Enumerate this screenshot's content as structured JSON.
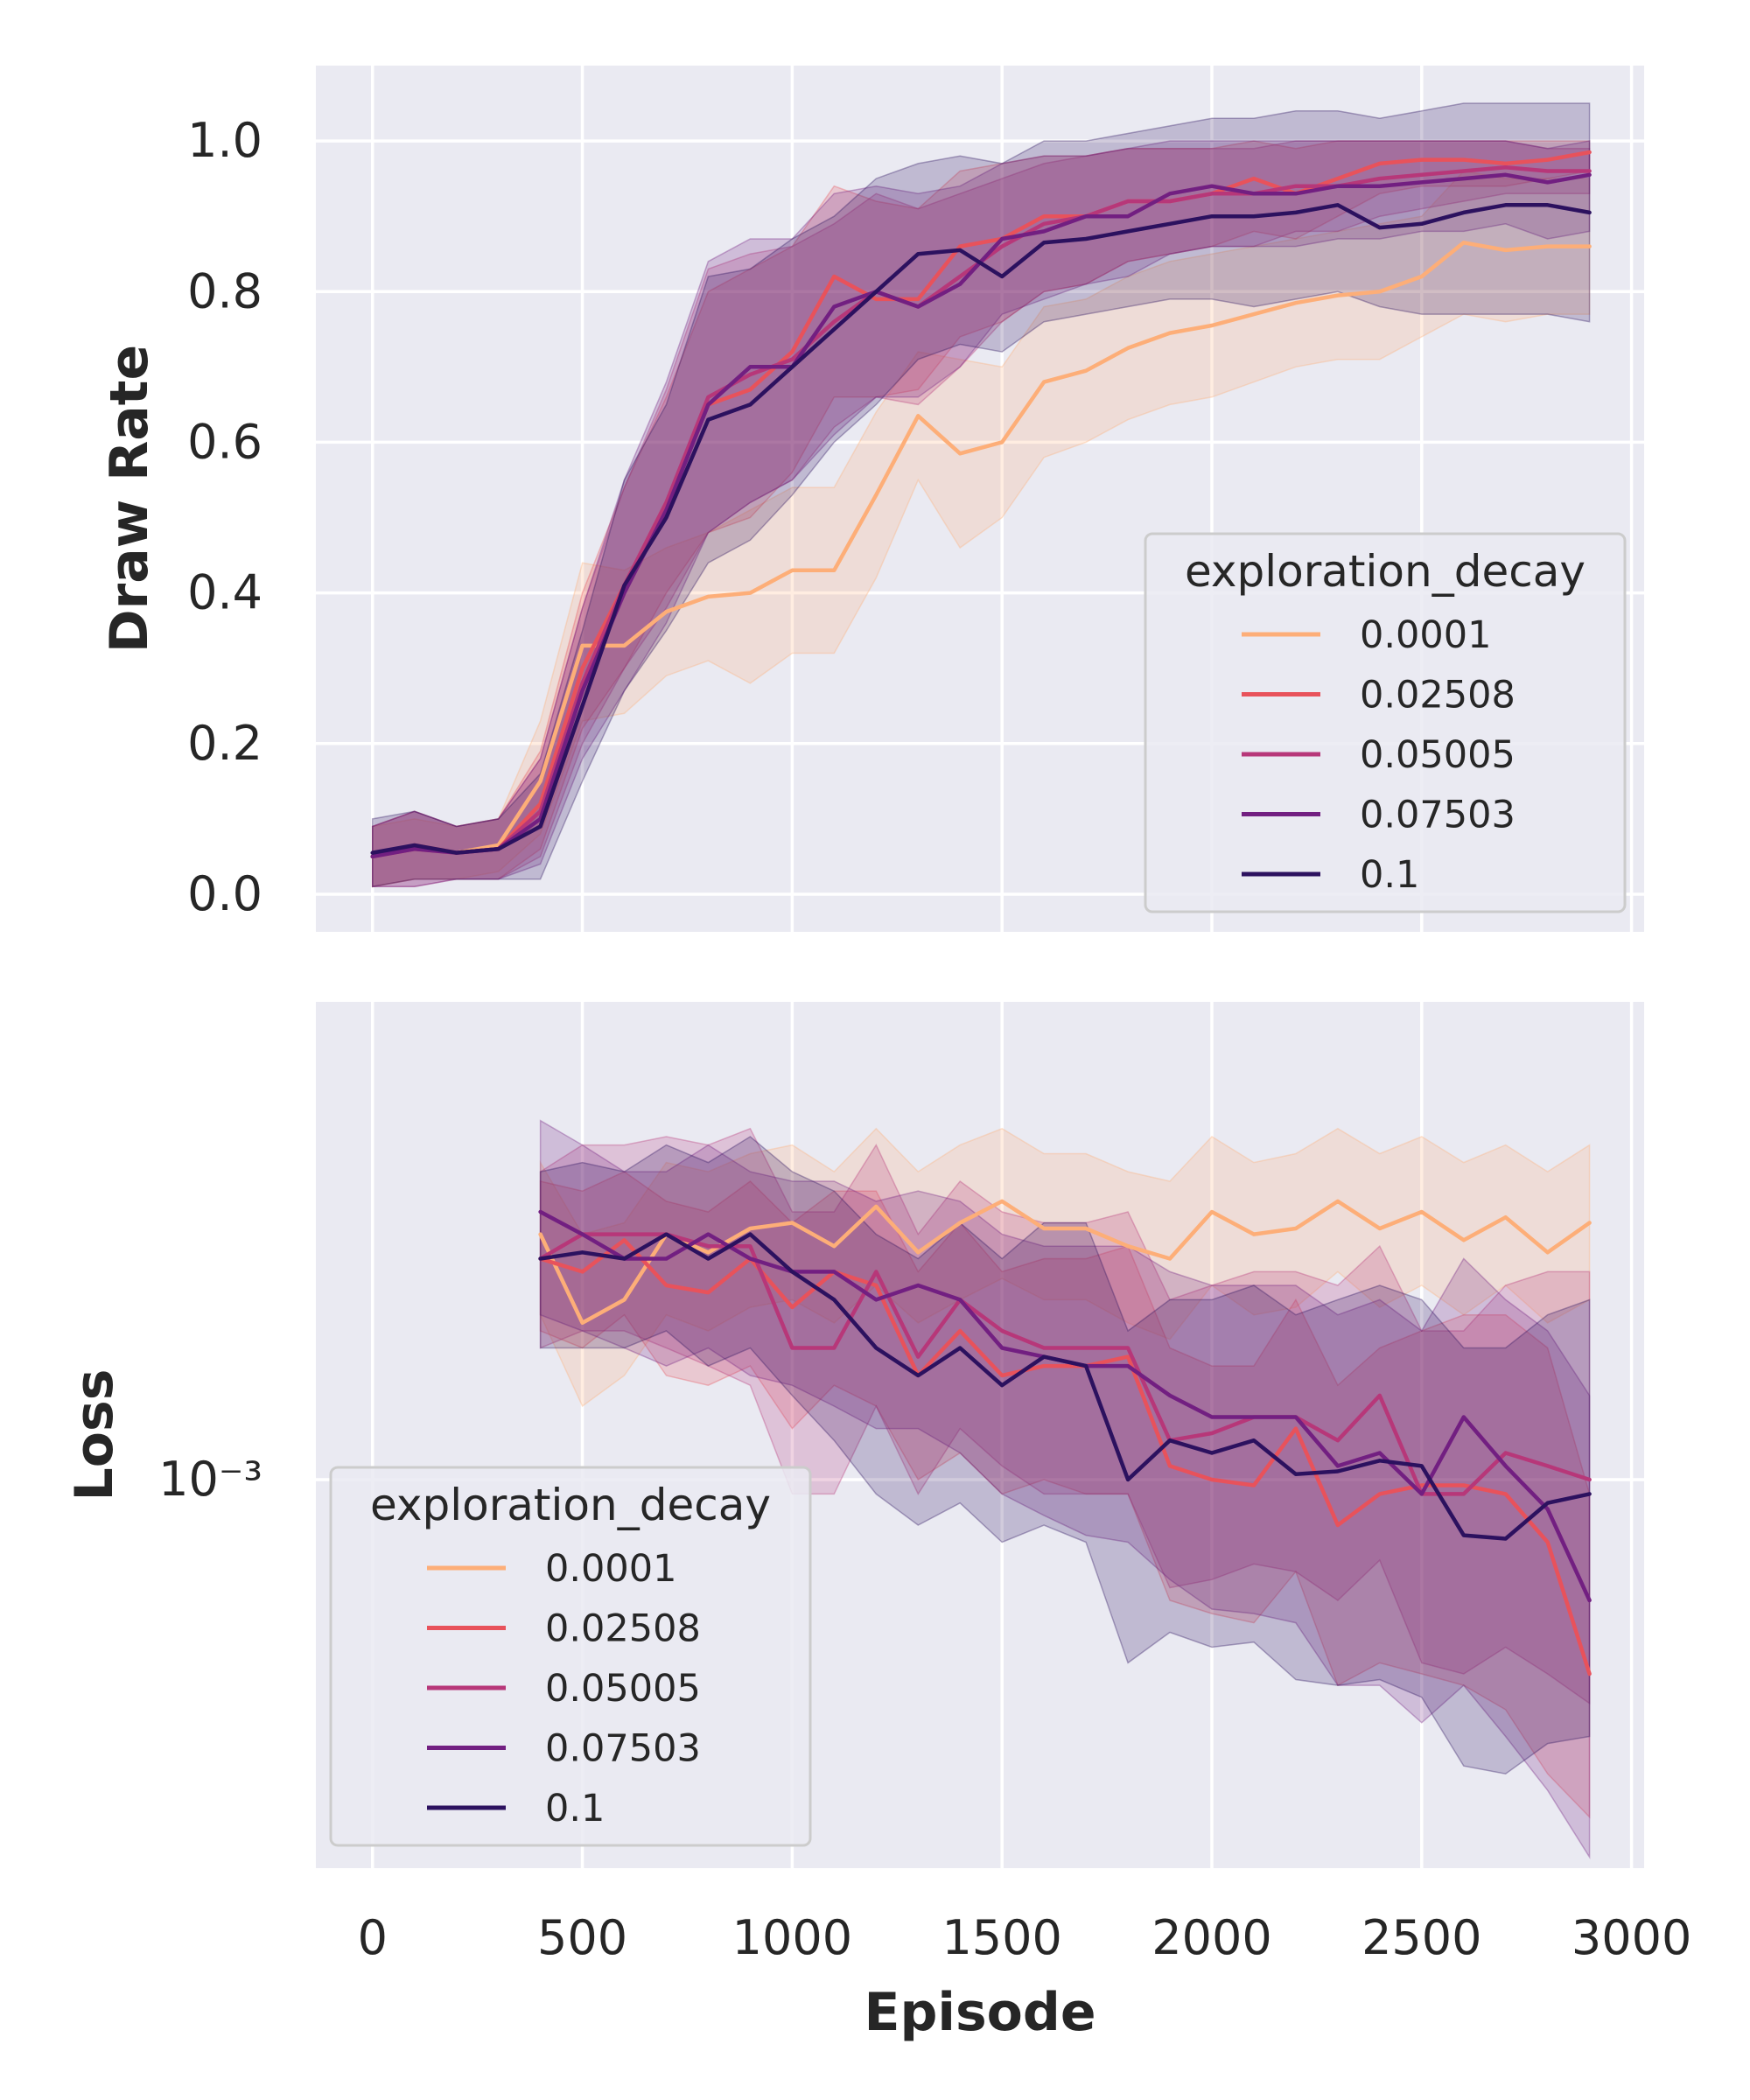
{
  "figure": {
    "shared_xlabel": "Episode",
    "shared_xticks": [
      "0",
      "500",
      "1000",
      "1500",
      "2000",
      "2500",
      "3000"
    ]
  },
  "chart_data": [
    {
      "type": "line",
      "ylabel": "Draw Rate",
      "xlim": [
        -135,
        3030
      ],
      "ylim": [
        -0.05,
        1.1
      ],
      "yticks": [
        "0.0",
        "0.2",
        "0.4",
        "0.6",
        "0.8",
        "1.0"
      ],
      "grid": true,
      "legend": {
        "title": "exploration_decay",
        "position": "center-right"
      },
      "x": [
        0,
        100,
        200,
        300,
        400,
        500,
        600,
        700,
        800,
        900,
        1000,
        1100,
        1200,
        1300,
        1400,
        1500,
        1600,
        1700,
        1800,
        1900,
        2000,
        2100,
        2200,
        2300,
        2400,
        2500,
        2600,
        2700,
        2800,
        2900
      ],
      "series": [
        {
          "name": "0.0001",
          "color": "#fdae78",
          "values": [
            0.05,
            0.06,
            0.055,
            0.065,
            0.15,
            0.33,
            0.33,
            0.375,
            0.395,
            0.4,
            0.43,
            0.43,
            0.53,
            0.635,
            0.585,
            0.6,
            0.68,
            0.695,
            0.725,
            0.745,
            0.755,
            0.77,
            0.785,
            0.795,
            0.8,
            0.82,
            0.865,
            0.855,
            0.86,
            0.86
          ],
          "lower": [
            0.01,
            0.02,
            0.02,
            0.03,
            0.08,
            0.23,
            0.24,
            0.29,
            0.31,
            0.28,
            0.32,
            0.32,
            0.42,
            0.55,
            0.46,
            0.5,
            0.58,
            0.6,
            0.63,
            0.65,
            0.66,
            0.68,
            0.7,
            0.71,
            0.71,
            0.74,
            0.77,
            0.76,
            0.77,
            0.77
          ],
          "upper": [
            0.09,
            0.1,
            0.09,
            0.1,
            0.23,
            0.44,
            0.43,
            0.46,
            0.48,
            0.51,
            0.54,
            0.54,
            0.64,
            0.72,
            0.71,
            0.7,
            0.78,
            0.79,
            0.82,
            0.84,
            0.85,
            0.86,
            0.87,
            0.88,
            0.89,
            0.9,
            0.96,
            0.95,
            0.95,
            0.95
          ]
        },
        {
          "name": "0.02508",
          "color": "#e8525b",
          "values": [
            0.05,
            0.065,
            0.055,
            0.06,
            0.12,
            0.3,
            0.41,
            0.52,
            0.65,
            0.67,
            0.72,
            0.82,
            0.79,
            0.79,
            0.86,
            0.87,
            0.9,
            0.9,
            0.92,
            0.92,
            0.93,
            0.95,
            0.93,
            0.95,
            0.97,
            0.975,
            0.975,
            0.97,
            0.975,
            0.985
          ],
          "lower": [
            0.01,
            0.02,
            0.02,
            0.02,
            0.06,
            0.22,
            0.3,
            0.4,
            0.48,
            0.5,
            0.56,
            0.66,
            0.66,
            0.67,
            0.74,
            0.76,
            0.8,
            0.81,
            0.84,
            0.85,
            0.86,
            0.88,
            0.87,
            0.9,
            0.93,
            0.94,
            0.94,
            0.94,
            0.95,
            0.96
          ],
          "upper": [
            0.09,
            0.11,
            0.09,
            0.1,
            0.19,
            0.4,
            0.54,
            0.66,
            0.8,
            0.83,
            0.86,
            0.94,
            0.92,
            0.91,
            0.96,
            0.97,
            0.98,
            0.98,
            0.99,
            0.99,
            0.99,
            1.0,
            0.99,
            1.0,
            1.0,
            1.0,
            1.0,
            1.0,
            1.0,
            1.0
          ]
        },
        {
          "name": "0.05005",
          "color": "#b73779",
          "values": [
            0.05,
            0.06,
            0.055,
            0.06,
            0.11,
            0.28,
            0.41,
            0.52,
            0.66,
            0.69,
            0.71,
            0.76,
            0.8,
            0.78,
            0.82,
            0.86,
            0.89,
            0.9,
            0.92,
            0.92,
            0.93,
            0.93,
            0.94,
            0.94,
            0.95,
            0.955,
            0.96,
            0.965,
            0.96,
            0.96
          ],
          "lower": [
            0.01,
            0.01,
            0.02,
            0.02,
            0.05,
            0.2,
            0.3,
            0.38,
            0.48,
            0.52,
            0.55,
            0.62,
            0.66,
            0.65,
            0.7,
            0.76,
            0.8,
            0.81,
            0.84,
            0.85,
            0.86,
            0.86,
            0.88,
            0.88,
            0.9,
            0.91,
            0.92,
            0.93,
            0.93,
            0.93
          ],
          "upper": [
            0.09,
            0.11,
            0.09,
            0.1,
            0.18,
            0.38,
            0.54,
            0.67,
            0.83,
            0.85,
            0.86,
            0.89,
            0.93,
            0.91,
            0.93,
            0.95,
            0.97,
            0.98,
            0.99,
            0.99,
            0.99,
            0.99,
            1.0,
            1.0,
            1.0,
            1.0,
            1.0,
            1.0,
            0.99,
            0.99
          ]
        },
        {
          "name": "0.07503",
          "color": "#721f81",
          "values": [
            0.05,
            0.06,
            0.055,
            0.06,
            0.1,
            0.27,
            0.4,
            0.51,
            0.65,
            0.7,
            0.7,
            0.78,
            0.8,
            0.78,
            0.81,
            0.87,
            0.88,
            0.9,
            0.9,
            0.93,
            0.94,
            0.93,
            0.93,
            0.94,
            0.94,
            0.945,
            0.95,
            0.955,
            0.945,
            0.955
          ],
          "lower": [
            0.01,
            0.01,
            0.02,
            0.02,
            0.04,
            0.18,
            0.27,
            0.36,
            0.48,
            0.52,
            0.55,
            0.61,
            0.66,
            0.66,
            0.7,
            0.77,
            0.79,
            0.81,
            0.82,
            0.85,
            0.86,
            0.86,
            0.86,
            0.87,
            0.87,
            0.88,
            0.88,
            0.89,
            0.87,
            0.88
          ],
          "upper": [
            0.09,
            0.11,
            0.09,
            0.1,
            0.18,
            0.38,
            0.55,
            0.68,
            0.84,
            0.87,
            0.87,
            0.93,
            0.94,
            0.93,
            0.94,
            0.97,
            0.98,
            0.98,
            0.99,
            1.0,
            1.0,
            1.0,
            1.0,
            1.0,
            1.0,
            1.0,
            1.0,
            1.0,
            0.99,
            1.0
          ]
        },
        {
          "name": "0.1",
          "color": "#2c115f",
          "values": [
            0.055,
            0.065,
            0.055,
            0.06,
            0.09,
            0.25,
            0.41,
            0.5,
            0.63,
            0.65,
            0.7,
            0.75,
            0.8,
            0.85,
            0.855,
            0.82,
            0.865,
            0.87,
            0.88,
            0.89,
            0.9,
            0.9,
            0.905,
            0.915,
            0.885,
            0.89,
            0.905,
            0.915,
            0.915,
            0.905
          ],
          "lower": [
            0.01,
            0.02,
            0.02,
            0.02,
            0.02,
            0.15,
            0.27,
            0.35,
            0.44,
            0.47,
            0.53,
            0.6,
            0.65,
            0.71,
            0.73,
            0.72,
            0.76,
            0.77,
            0.78,
            0.79,
            0.79,
            0.78,
            0.79,
            0.8,
            0.78,
            0.77,
            0.77,
            0.77,
            0.77,
            0.76
          ],
          "upper": [
            0.1,
            0.11,
            0.09,
            0.1,
            0.16,
            0.35,
            0.55,
            0.65,
            0.82,
            0.83,
            0.87,
            0.9,
            0.95,
            0.97,
            0.98,
            0.97,
            1.0,
            1.0,
            1.01,
            1.02,
            1.03,
            1.03,
            1.04,
            1.04,
            1.03,
            1.04,
            1.05,
            1.05,
            1.05,
            1.05
          ]
        }
      ]
    },
    {
      "type": "line",
      "ylabel": "Loss",
      "yscale": "log",
      "xlim": [
        -135,
        3030
      ],
      "ylim": [
        0.00025,
        0.0055
      ],
      "yticks": [
        "10⁻³"
      ],
      "ytick_values": [
        0.001
      ],
      "grid": true,
      "legend": {
        "title": "exploration_decay",
        "position": "lower-left"
      },
      "x": [
        400,
        500,
        600,
        700,
        800,
        900,
        1000,
        1100,
        1200,
        1300,
        1400,
        1500,
        1600,
        1700,
        1800,
        1900,
        2000,
        2100,
        2200,
        2300,
        2400,
        2500,
        2600,
        2700,
        2800,
        2900
      ],
      "series": [
        {
          "name": "0.0001",
          "color": "#fdae78",
          "values": [
            0.0024,
            0.00175,
            0.0019,
            0.0024,
            0.00225,
            0.00245,
            0.0025,
            0.0023,
            0.00265,
            0.00225,
            0.0025,
            0.0027,
            0.00245,
            0.00245,
            0.0023,
            0.0022,
            0.0026,
            0.0024,
            0.00245,
            0.0027,
            0.00245,
            0.0026,
            0.00235,
            0.00255,
            0.00225,
            0.0025
          ],
          "lower": [
            0.0018,
            0.0013,
            0.00145,
            0.0018,
            0.0017,
            0.00185,
            0.0019,
            0.00175,
            0.002,
            0.00175,
            0.0019,
            0.00205,
            0.0019,
            0.0019,
            0.00175,
            0.00165,
            0.002,
            0.0018,
            0.00185,
            0.0021,
            0.00185,
            0.002,
            0.0018,
            0.002,
            0.00175,
            0.0019
          ],
          "upper": [
            0.0031,
            0.0024,
            0.0025,
            0.0031,
            0.003,
            0.0032,
            0.0033,
            0.003,
            0.0035,
            0.003,
            0.0033,
            0.0035,
            0.0032,
            0.0032,
            0.003,
            0.0029,
            0.0034,
            0.0031,
            0.0032,
            0.0035,
            0.0032,
            0.0034,
            0.0031,
            0.0033,
            0.003,
            0.0033
          ]
        },
        {
          "name": "0.02508",
          "color": "#e8525b",
          "values": [
            0.0022,
            0.0021,
            0.00235,
            0.002,
            0.00195,
            0.0022,
            0.00185,
            0.0021,
            0.002,
            0.00145,
            0.0017,
            0.00145,
            0.0015,
            0.0015,
            0.00155,
            0.00105,
            0.001,
            0.00098,
            0.0012,
            0.00085,
            0.00095,
            0.00098,
            0.00098,
            0.00095,
            0.0008,
            0.0005
          ],
          "lower": [
            0.0017,
            0.0016,
            0.0018,
            0.00145,
            0.0014,
            0.0015,
            0.0012,
            0.0014,
            0.0013,
            0.001,
            0.0011,
            0.00095,
            0.001,
            0.00095,
            0.00095,
            0.00065,
            0.00062,
            0.0006,
            0.00072,
            0.00048,
            0.00052,
            0.0005,
            0.00048,
            0.00044,
            0.00035,
            0.0003
          ],
          "upper": [
            0.0029,
            0.0028,
            0.003,
            0.0027,
            0.0026,
            0.0029,
            0.0025,
            0.0028,
            0.0028,
            0.0021,
            0.0025,
            0.0021,
            0.0022,
            0.0022,
            0.0023,
            0.0016,
            0.0015,
            0.0015,
            0.0019,
            0.0014,
            0.0016,
            0.0017,
            0.0018,
            0.0018,
            0.0016,
            0.00095
          ]
        },
        {
          "name": "0.05005",
          "color": "#b73779",
          "values": [
            0.0022,
            0.0024,
            0.0024,
            0.0024,
            0.0023,
            0.0023,
            0.0016,
            0.0016,
            0.0021,
            0.00155,
            0.0019,
            0.0017,
            0.0016,
            0.0016,
            0.0016,
            0.00115,
            0.00118,
            0.00125,
            0.00125,
            0.00115,
            0.00135,
            0.00095,
            0.00095,
            0.0011,
            0.00105,
            0.001
          ],
          "lower": [
            0.0016,
            0.0017,
            0.0017,
            0.0016,
            0.0015,
            0.0014,
            0.00095,
            0.00095,
            0.0013,
            0.00095,
            0.0012,
            0.00105,
            0.00095,
            0.00095,
            0.00095,
            0.00068,
            0.0007,
            0.00074,
            0.00072,
            0.00065,
            0.00075,
            0.00052,
            0.0005,
            0.00055,
            0.0005,
            0.00045
          ],
          "upper": [
            0.003,
            0.0033,
            0.0033,
            0.0034,
            0.0033,
            0.0035,
            0.0026,
            0.0026,
            0.0033,
            0.0024,
            0.0029,
            0.0026,
            0.0025,
            0.0025,
            0.0026,
            0.0019,
            0.002,
            0.0021,
            0.0021,
            0.002,
            0.0023,
            0.0017,
            0.0017,
            0.002,
            0.0021,
            0.0021
          ]
        },
        {
          "name": "0.07503",
          "color": "#721f81",
          "values": [
            0.0026,
            0.0024,
            0.0022,
            0.0022,
            0.0024,
            0.0022,
            0.0021,
            0.0021,
            0.0019,
            0.002,
            0.0019,
            0.0016,
            0.00155,
            0.0015,
            0.0015,
            0.00135,
            0.00125,
            0.00125,
            0.00125,
            0.00105,
            0.0011,
            0.00095,
            0.00125,
            0.00105,
            0.0009,
            0.00065
          ],
          "lower": [
            0.0018,
            0.0017,
            0.0016,
            0.0015,
            0.0016,
            0.00145,
            0.0014,
            0.0013,
            0.0012,
            0.0012,
            0.0011,
            0.00095,
            0.00088,
            0.00082,
            0.0008,
            0.0007,
            0.00063,
            0.00062,
            0.0006,
            0.00048,
            0.00048,
            0.00042,
            0.00048,
            0.0004,
            0.00033,
            0.00026
          ],
          "upper": [
            0.0036,
            0.0033,
            0.003,
            0.003,
            0.0033,
            0.003,
            0.0029,
            0.0029,
            0.0027,
            0.0028,
            0.0027,
            0.0024,
            0.0023,
            0.0023,
            0.0023,
            0.0021,
            0.002,
            0.002,
            0.002,
            0.0018,
            0.0019,
            0.0017,
            0.0022,
            0.0019,
            0.0017,
            0.00135
          ]
        },
        {
          "name": "0.1",
          "color": "#2c115f",
          "values": [
            0.0022,
            0.00225,
            0.0022,
            0.0024,
            0.0022,
            0.0024,
            0.0021,
            0.0019,
            0.0016,
            0.00145,
            0.0016,
            0.0014,
            0.00155,
            0.0015,
            0.001,
            0.00115,
            0.0011,
            0.00115,
            0.00102,
            0.00103,
            0.00107,
            0.00105,
            0.00082,
            0.00081,
            0.00092,
            0.00095
          ],
          "lower": [
            0.0016,
            0.0016,
            0.0016,
            0.0017,
            0.0015,
            0.0016,
            0.00135,
            0.00115,
            0.00095,
            0.00085,
            0.00092,
            0.0008,
            0.00085,
            0.0008,
            0.00052,
            0.00058,
            0.00055,
            0.00056,
            0.00049,
            0.00048,
            0.00049,
            0.00046,
            0.00036,
            0.00035,
            0.00039,
            0.0004
          ],
          "upper": [
            0.003,
            0.0031,
            0.003,
            0.0033,
            0.0031,
            0.0034,
            0.003,
            0.0028,
            0.0024,
            0.0022,
            0.0025,
            0.0022,
            0.0025,
            0.0025,
            0.0017,
            0.0019,
            0.0019,
            0.002,
            0.0018,
            0.0019,
            0.002,
            0.0019,
            0.0016,
            0.0016,
            0.0018,
            0.0019
          ]
        }
      ]
    }
  ]
}
